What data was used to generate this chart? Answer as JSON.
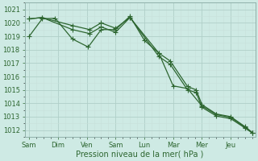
{
  "background_color": "#ceeae4",
  "grid_color_major": "#b0cfc8",
  "grid_color_minor": "#c8e0db",
  "line_color": "#2d6630",
  "xlabel": "Pression niveau de la mer( hPa )",
  "ylim": [
    1011.5,
    1021.5
  ],
  "yticks": [
    1012,
    1013,
    1014,
    1015,
    1016,
    1017,
    1018,
    1019,
    1020,
    1021
  ],
  "xtick_labels": [
    "Sam",
    "Dim",
    "Ven",
    "Sam",
    "Lun",
    "Mar",
    "Mer",
    "Jeu"
  ],
  "xtick_positions": [
    0,
    1,
    2,
    3,
    4,
    5,
    6,
    7
  ],
  "xlim": [
    -0.15,
    7.85
  ],
  "s1_x": [
    0.0,
    0.45,
    0.9,
    1.5,
    2.05,
    2.5,
    3.0,
    3.5,
    4.0,
    4.5,
    5.0,
    5.5,
    6.0,
    6.5,
    7.0,
    7.5,
    7.75
  ],
  "s1_y": [
    1019.0,
    1020.3,
    1020.35,
    1018.8,
    1018.2,
    1019.5,
    1019.5,
    1020.5,
    1018.7,
    1017.75,
    1015.3,
    1015.1,
    1013.8,
    1013.15,
    1012.95,
    1012.2,
    1011.8
  ],
  "s2_x": [
    0.0,
    0.45,
    1.5,
    2.1,
    2.5,
    3.0,
    3.5,
    4.5,
    4.9,
    5.5,
    5.8,
    6.0,
    6.5,
    7.0,
    7.5,
    7.75
  ],
  "s2_y": [
    1020.3,
    1020.4,
    1019.8,
    1019.5,
    1020.0,
    1019.6,
    1020.4,
    1017.75,
    1017.15,
    1015.25,
    1015.0,
    1013.9,
    1013.2,
    1013.0,
    1012.25,
    1011.82
  ],
  "s3_x": [
    0.0,
    0.45,
    1.5,
    2.1,
    2.5,
    3.0,
    3.5,
    4.5,
    4.9,
    5.5,
    5.8,
    6.0,
    6.5,
    7.0,
    7.5,
    7.75
  ],
  "s3_y": [
    1020.3,
    1020.4,
    1019.5,
    1019.2,
    1019.7,
    1019.3,
    1020.4,
    1017.5,
    1016.9,
    1015.0,
    1014.8,
    1013.7,
    1013.05,
    1012.85,
    1012.15,
    1011.78
  ]
}
